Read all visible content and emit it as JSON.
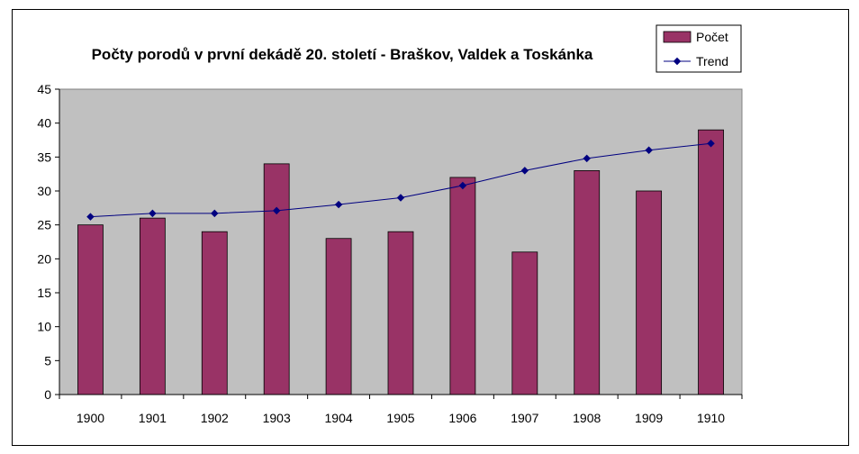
{
  "chart_data": {
    "type": "bar",
    "title": "Počty porodů v první dekádě 20. století - Braškov, Valdek a Toskánka",
    "xlabel": "",
    "ylabel": "",
    "categories": [
      "1900",
      "1901",
      "1902",
      "1903",
      "1904",
      "1905",
      "1906",
      "1907",
      "1908",
      "1909",
      "1910"
    ],
    "series": [
      {
        "name": "Počet",
        "type": "bar",
        "color": "#993366",
        "values": [
          25,
          26,
          24,
          34,
          23,
          24,
          32,
          21,
          33,
          30,
          39
        ]
      },
      {
        "name": "Trend",
        "type": "line",
        "color": "#000080",
        "values": [
          26.2,
          26.7,
          26.7,
          27.1,
          28.0,
          29.0,
          30.8,
          33.0,
          34.8,
          36.0,
          37.0
        ]
      }
    ],
    "ylim": [
      0,
      45
    ],
    "yticks": [
      0,
      5,
      10,
      15,
      20,
      25,
      30,
      35,
      40,
      45
    ],
    "plot_background": "#c0c0c0",
    "grid": false,
    "legend": "top-right"
  }
}
